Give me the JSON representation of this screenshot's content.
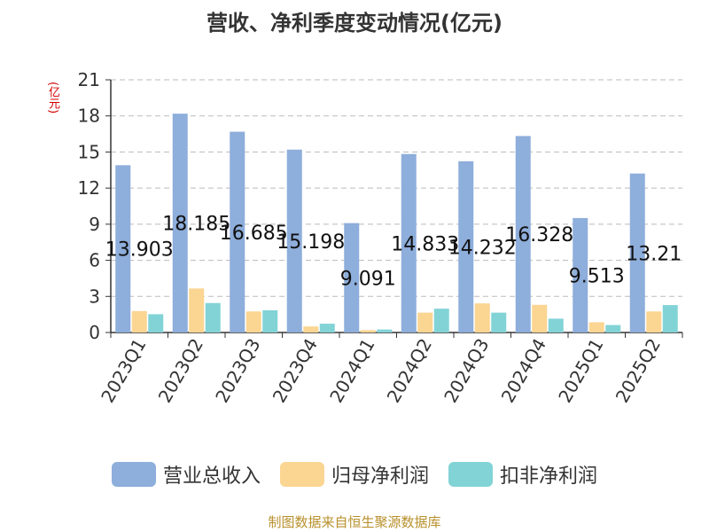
{
  "colors": {
    "axis": "#333333",
    "grid": "#bbbbbb",
    "title": "#333333",
    "ylabel": "#d40000",
    "source": "#b8902c"
  },
  "chart_data": {
    "type": "bar",
    "title": "营收、净利季度变动情况(亿元)",
    "ylabel": "(亿元)",
    "xlabel": "",
    "ylim": [
      0,
      21
    ],
    "yticks": [
      0,
      3,
      6,
      9,
      12,
      15,
      18,
      21
    ],
    "grid": true,
    "legend_position": "bottom",
    "categories": [
      "2023Q1",
      "2023Q2",
      "2023Q3",
      "2023Q4",
      "2024Q1",
      "2024Q2",
      "2024Q3",
      "2024Q4",
      "2025Q1",
      "2025Q2"
    ],
    "series": [
      {
        "name": "营业总收入",
        "color": "#8eaedb",
        "values": [
          13.903,
          18.185,
          16.685,
          15.198,
          9.091,
          14.833,
          14.232,
          16.328,
          9.513,
          13.21
        ],
        "labels": [
          "13.903",
          "18.185",
          "16.685",
          "15.198",
          "9.091",
          "14.833",
          "14.232",
          "16.328",
          "9.513",
          "13.21"
        ]
      },
      {
        "name": "归母净利润",
        "color": "#fbd592",
        "values": [
          1.78,
          3.66,
          1.75,
          0.5,
          0.2,
          1.65,
          2.42,
          2.3,
          0.85,
          1.75
        ]
      },
      {
        "name": "扣非净利润",
        "color": "#82d3d6",
        "values": [
          1.52,
          2.45,
          1.85,
          0.73,
          0.25,
          1.98,
          1.65,
          1.15,
          0.62,
          2.28
        ]
      }
    ]
  },
  "legend": {
    "items": [
      "营业总收入",
      "归母净利润",
      "扣非净利润"
    ]
  },
  "source_text": "制图数据来自恒生聚源数据库"
}
